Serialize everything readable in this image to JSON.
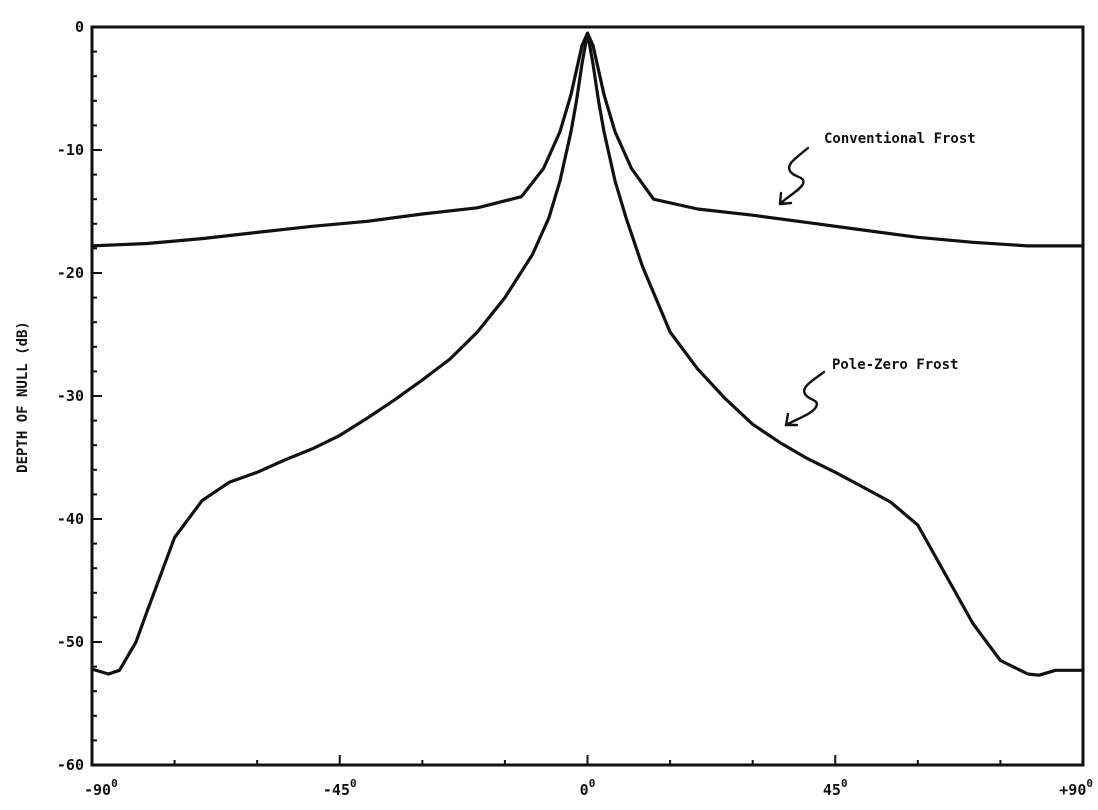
{
  "chart_data": {
    "type": "line",
    "title": "",
    "xlabel": "",
    "ylabel": "DEPTH OF NULL (dB)",
    "xlim": [
      -90,
      90
    ],
    "ylim": [
      -60,
      0
    ],
    "x_ticks": [
      {
        "value": -90,
        "label": "-90",
        "sup": "0"
      },
      {
        "value": -45,
        "label": "-45",
        "sup": "0"
      },
      {
        "value": 0,
        "label": "0",
        "sup": "0"
      },
      {
        "value": 45,
        "label": "45",
        "sup": "0"
      },
      {
        "value": 90,
        "label": "+90",
        "sup": "0"
      }
    ],
    "y_ticks": [
      {
        "value": 0,
        "label": "0"
      },
      {
        "value": -10,
        "label": "-10"
      },
      {
        "value": -20,
        "label": "-20"
      },
      {
        "value": -30,
        "label": "-30"
      },
      {
        "value": -40,
        "label": "-40"
      },
      {
        "value": -50,
        "label": "-50"
      },
      {
        "value": -60,
        "label": "-60"
      }
    ],
    "grid": false,
    "legend": "none",
    "series": [
      {
        "name": "Conventional Frost",
        "x": [
          -90,
          -80,
          -70,
          -60,
          -50,
          -40,
          -30,
          -20,
          -12,
          -8,
          -5,
          -3,
          -2,
          -1,
          0,
          1,
          2,
          3,
          5,
          8,
          12,
          20,
          30,
          40,
          50,
          60,
          70,
          80,
          90
        ],
        "y": [
          -17.8,
          -17.6,
          -17.2,
          -16.7,
          -16.2,
          -15.8,
          -15.2,
          -14.7,
          -13.8,
          -11.5,
          -8.5,
          -5.5,
          -3.5,
          -1.5,
          -0.5,
          -1.5,
          -3.5,
          -5.5,
          -8.5,
          -11.5,
          -14.0,
          -14.8,
          -15.3,
          -15.9,
          -16.5,
          -17.1,
          -17.5,
          -17.8,
          -17.8
        ]
      },
      {
        "name": "Pole-Zero Frost",
        "x": [
          -90,
          -87,
          -85,
          -82,
          -80,
          -75,
          -70,
          -65,
          -60,
          -55,
          -50,
          -45,
          -40,
          -35,
          -30,
          -25,
          -20,
          -15,
          -10,
          -7,
          -5,
          -3,
          -2,
          -1,
          0,
          1,
          2,
          3,
          5,
          7,
          10,
          15,
          20,
          25,
          30,
          35,
          40,
          45,
          50,
          55,
          60,
          65,
          70,
          75,
          80,
          82,
          85,
          87,
          90
        ],
        "y": [
          -52.2,
          -52.6,
          -52.3,
          -50,
          -47.5,
          -41.5,
          -38.5,
          -37,
          -36.2,
          -35.2,
          -34.3,
          -33.2,
          -31.8,
          -30.3,
          -28.7,
          -27,
          -24.8,
          -22,
          -18.5,
          -15.5,
          -12.5,
          -8.5,
          -6,
          -3,
          -0.5,
          -3,
          -6,
          -8.5,
          -12.5,
          -15.5,
          -19.5,
          -24.8,
          -27.8,
          -30.2,
          -32.3,
          -33.8,
          -35.1,
          -36.2,
          -37.4,
          -38.6,
          -40.5,
          -44.5,
          -48.5,
          -51.5,
          -52.6,
          -52.7,
          -52.3,
          -52.3,
          -52.3
        ]
      }
    ],
    "annotations": [
      {
        "text": "Conventional Frost",
        "series": "Conventional Frost"
      },
      {
        "text": "Pole-Zero Frost",
        "series": "Pole-Zero Frost"
      }
    ]
  }
}
